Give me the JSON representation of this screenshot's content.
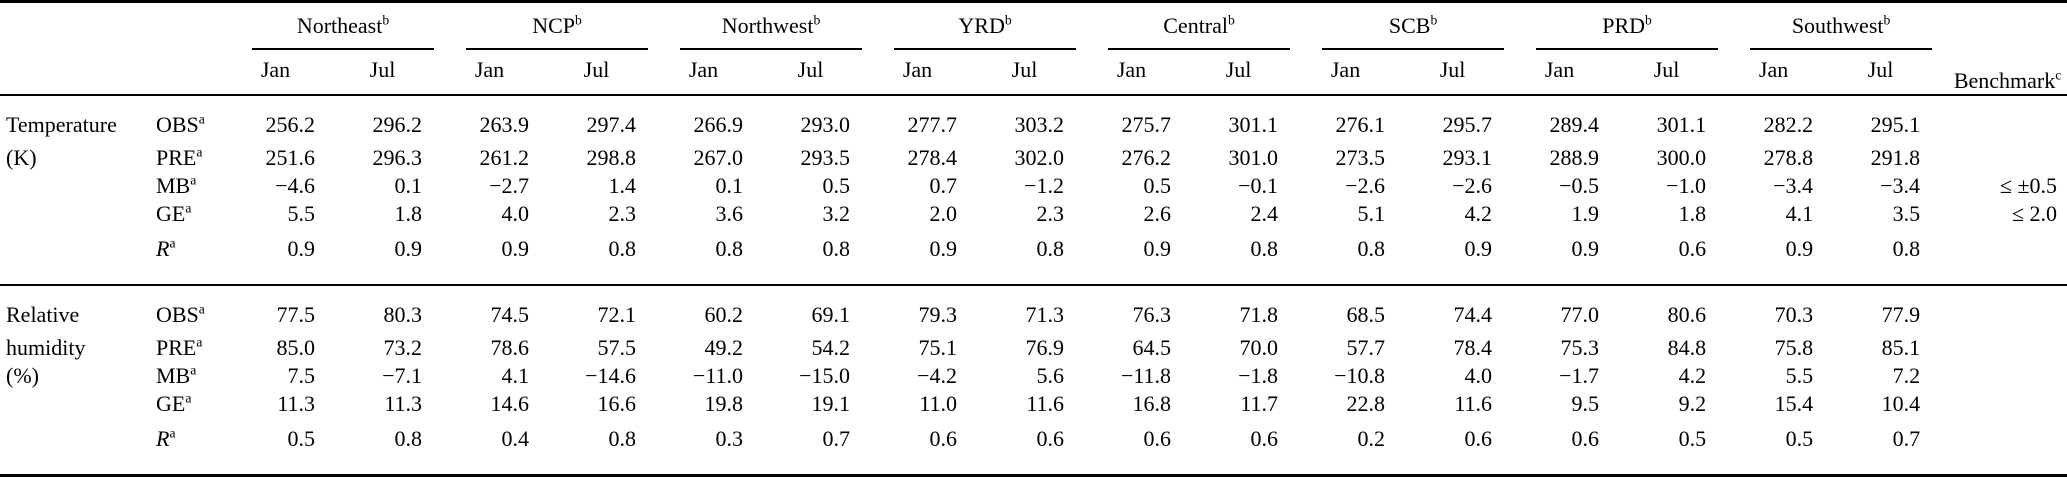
{
  "table": {
    "months": [
      "Jan",
      "Jul"
    ],
    "regions": [
      {
        "name": "Northeast",
        "sup": "b"
      },
      {
        "name": "NCP",
        "sup": "b"
      },
      {
        "name": "Northwest",
        "sup": "b"
      },
      {
        "name": "YRD",
        "sup": "b"
      },
      {
        "name": "Central",
        "sup": "b"
      },
      {
        "name": "SCB",
        "sup": "b"
      },
      {
        "name": "PRD",
        "sup": "b"
      },
      {
        "name": "Southwest",
        "sup": "b"
      }
    ],
    "benchmark_header": {
      "name": "Benchmark",
      "sup": "c"
    },
    "blocks": [
      {
        "label_lines": [
          "Temperature",
          "(K)"
        ],
        "rows": [
          {
            "stat": "OBS",
            "sup": "a",
            "italic": false,
            "benchmark": "",
            "values": [
              "256.2",
              "296.2",
              "263.9",
              "297.4",
              "266.9",
              "293.0",
              "277.7",
              "303.2",
              "275.7",
              "301.1",
              "276.1",
              "295.7",
              "289.4",
              "301.1",
              "282.2",
              "295.1"
            ]
          },
          {
            "stat": "PRE",
            "sup": "a",
            "italic": false,
            "benchmark": "",
            "values": [
              "251.6",
              "296.3",
              "261.2",
              "298.8",
              "267.0",
              "293.5",
              "278.4",
              "302.0",
              "276.2",
              "301.0",
              "273.5",
              "293.1",
              "288.9",
              "300.0",
              "278.8",
              "291.8"
            ]
          },
          {
            "stat": "MB",
            "sup": "a",
            "italic": false,
            "benchmark": "≤ ±0.5",
            "values": [
              "−4.6",
              "0.1",
              "−2.7",
              "1.4",
              "0.1",
              "0.5",
              "0.7",
              "−1.2",
              "0.5",
              "−0.1",
              "−2.6",
              "−2.6",
              "−0.5",
              "−1.0",
              "−3.4",
              "−3.4"
            ]
          },
          {
            "stat": "GE",
            "sup": "a",
            "italic": false,
            "benchmark": "≤ 2.0",
            "values": [
              "5.5",
              "1.8",
              "4.0",
              "2.3",
              "3.6",
              "3.2",
              "2.0",
              "2.3",
              "2.6",
              "2.4",
              "5.1",
              "4.2",
              "1.9",
              "1.8",
              "4.1",
              "3.5"
            ]
          },
          {
            "stat": "R",
            "sup": "a",
            "italic": true,
            "benchmark": "",
            "values": [
              "0.9",
              "0.9",
              "0.9",
              "0.8",
              "0.8",
              "0.8",
              "0.9",
              "0.8",
              "0.9",
              "0.8",
              "0.8",
              "0.9",
              "0.9",
              "0.6",
              "0.9",
              "0.8"
            ]
          }
        ]
      },
      {
        "label_lines": [
          "Relative",
          "humidity",
          "(%)"
        ],
        "rows": [
          {
            "stat": "OBS",
            "sup": "a",
            "italic": false,
            "benchmark": "",
            "values": [
              "77.5",
              "80.3",
              "74.5",
              "72.1",
              "60.2",
              "69.1",
              "79.3",
              "71.3",
              "76.3",
              "71.8",
              "68.5",
              "74.4",
              "77.0",
              "80.6",
              "70.3",
              "77.9"
            ]
          },
          {
            "stat": "PRE",
            "sup": "a",
            "italic": false,
            "benchmark": "",
            "values": [
              "85.0",
              "73.2",
              "78.6",
              "57.5",
              "49.2",
              "54.2",
              "75.1",
              "76.9",
              "64.5",
              "70.0",
              "57.7",
              "78.4",
              "75.3",
              "84.8",
              "75.8",
              "85.1"
            ]
          },
          {
            "stat": "MB",
            "sup": "a",
            "italic": false,
            "benchmark": "",
            "values": [
              "7.5",
              "−7.1",
              "4.1",
              "−14.6",
              "−11.0",
              "−15.0",
              "−4.2",
              "5.6",
              "−11.8",
              "−1.8",
              "−10.8",
              "4.0",
              "−1.7",
              "4.2",
              "5.5",
              "7.2"
            ]
          },
          {
            "stat": "GE",
            "sup": "a",
            "italic": false,
            "benchmark": "",
            "values": [
              "11.3",
              "11.3",
              "14.6",
              "16.6",
              "19.8",
              "19.1",
              "11.0",
              "11.6",
              "16.8",
              "11.7",
              "22.8",
              "11.6",
              "9.5",
              "9.2",
              "15.4",
              "10.4"
            ]
          },
          {
            "stat": "R",
            "sup": "a",
            "italic": true,
            "benchmark": "",
            "values": [
              "0.5",
              "0.8",
              "0.4",
              "0.8",
              "0.3",
              "0.7",
              "0.6",
              "0.6",
              "0.6",
              "0.6",
              "0.2",
              "0.6",
              "0.6",
              "0.5",
              "0.5",
              "0.7"
            ]
          }
        ]
      }
    ]
  }
}
